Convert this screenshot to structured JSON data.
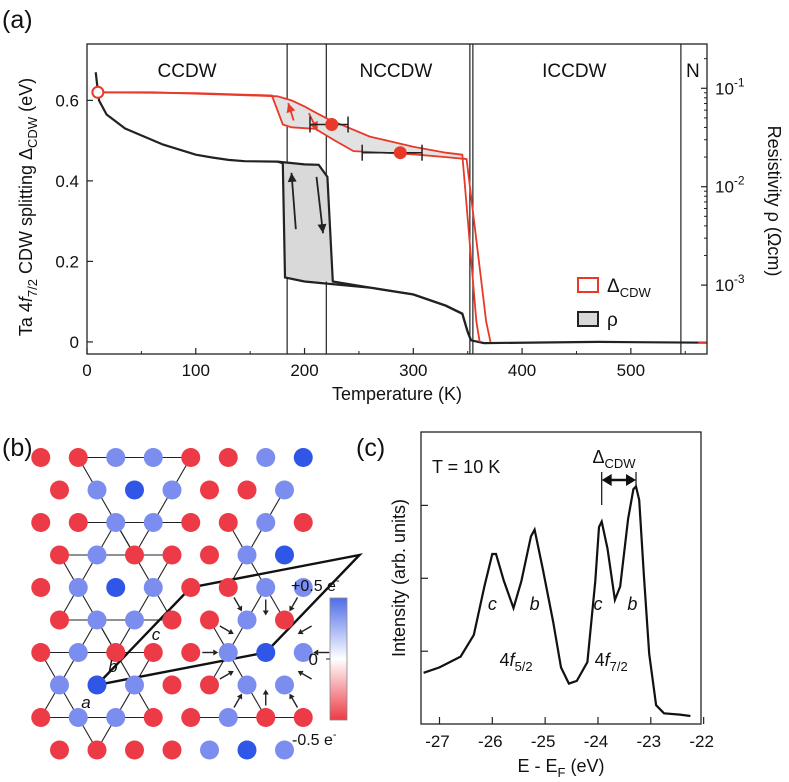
{
  "panel_labels": {
    "a": "(a)",
    "b": "(b)",
    "c": "(c)"
  },
  "chart_data": [
    {
      "panel": "a",
      "type": "line",
      "xlabel": "Temperature (K)",
      "ylabel": "Ta 4f7/2 CDW splitting ΔCDW (eV)",
      "y2label": "Resistivity ρ (Ωcm)",
      "xlim": [
        0,
        570
      ],
      "ylim": [
        -0.03,
        0.74
      ],
      "y2lim_log": [
        -3.7,
        -0.55
      ],
      "xticks": [
        0,
        100,
        200,
        300,
        400,
        500
      ],
      "yticks": [
        0,
        0.2,
        0.4,
        0.6
      ],
      "y2ticks_exp": [
        -3,
        -2,
        -1
      ],
      "phase_boundaries_K": [
        184,
        220,
        352,
        546
      ],
      "phases": [
        {
          "label": "CCDW",
          "x": 92
        },
        {
          "label": "NCCDW",
          "x": 284
        },
        {
          "label": "ICCDW",
          "x": 448
        },
        {
          "label": "N",
          "x": 557
        }
      ],
      "legend": [
        {
          "label": "ΔCDW",
          "color": "#e8392a"
        },
        {
          "label": "ρ",
          "color": "#222222"
        }
      ],
      "delta_cdw_cooling": [
        [
          10,
          0.62
        ],
        [
          60,
          0.62
        ],
        [
          120,
          0.615
        ],
        [
          175,
          0.61
        ],
        [
          188,
          0.6
        ],
        [
          200,
          0.585
        ],
        [
          210,
          0.57
        ],
        [
          222,
          0.553
        ],
        [
          260,
          0.51
        ],
        [
          300,
          0.485
        ],
        [
          330,
          0.47
        ],
        [
          345,
          0.465
        ],
        [
          358,
          0.05
        ],
        [
          361,
          0
        ]
      ],
      "delta_cdw_heating": [
        [
          10,
          0.62
        ],
        [
          100,
          0.618
        ],
        [
          170,
          0.612
        ],
        [
          180,
          0.54
        ],
        [
          188,
          0.533
        ],
        [
          210,
          0.529
        ],
        [
          228,
          0.5
        ],
        [
          245,
          0.474
        ],
        [
          300,
          0.466
        ],
        [
          330,
          0.459
        ],
        [
          349,
          0.454
        ],
        [
          367,
          0.05
        ],
        [
          371,
          0
        ]
      ],
      "delta_cdw_points": [
        {
          "T": 10,
          "value": 0.62,
          "marker": "open-circle"
        },
        {
          "T": 225,
          "value": 0.54,
          "xerr": [
            205,
            240
          ],
          "marker": "filled-circle"
        },
        {
          "T": 288,
          "value": 0.47,
          "xerr": [
            253,
            308
          ],
          "marker": "filled-circle"
        }
      ],
      "resistivity_cooling": [
        [
          8,
          0.67
        ],
        [
          11,
          0.6
        ],
        [
          18,
          0.565
        ],
        [
          35,
          0.53
        ],
        [
          70,
          0.49
        ],
        [
          100,
          0.465
        ],
        [
          115,
          0.458
        ],
        [
          130,
          0.452
        ],
        [
          145,
          0.449
        ],
        [
          175,
          0.448
        ],
        [
          180,
          0.444
        ],
        [
          182,
          0.16
        ],
        [
          200,
          0.15
        ],
        [
          260,
          0.135
        ],
        [
          300,
          0.118
        ],
        [
          330,
          0.09
        ],
        [
          345,
          0.07
        ],
        [
          350,
          0.025
        ],
        [
          353,
          0.004
        ],
        [
          365,
          -0.003
        ],
        [
          470,
          0.0
        ],
        [
          570,
          -0.002
        ]
      ],
      "resistivity_heating": [
        [
          175,
          0.448
        ],
        [
          200,
          0.441
        ],
        [
          213,
          0.44
        ],
        [
          221,
          0.41
        ],
        [
          226,
          0.15
        ],
        [
          260,
          0.135
        ],
        [
          300,
          0.118
        ],
        [
          330,
          0.09
        ],
        [
          345,
          0.07
        ],
        [
          350,
          0.025
        ],
        [
          353,
          0.004
        ]
      ]
    },
    {
      "panel": "c",
      "type": "line",
      "xlabel": "E - EF (eV)",
      "ylabel": "Intensity (arb. units)",
      "xlim": [
        -27.35,
        -22.05
      ],
      "xticks": [
        -27,
        -26,
        -25,
        -24,
        -23,
        -22
      ],
      "annotation_temperature": "T = 10 K",
      "annotation_splitting": "ΔCDW",
      "peak_labels": [
        {
          "text": "c",
          "x": -26.0
        },
        {
          "text": "b",
          "x": -25.2
        },
        {
          "text": "c",
          "x": -24.0
        },
        {
          "text": "b",
          "x": -23.35
        }
      ],
      "group_labels": [
        {
          "text": "4f5/2",
          "x": -25.55
        },
        {
          "text": "4f7/2",
          "x": -23.75
        }
      ],
      "spectrum": [
        [
          -27.3,
          0.16
        ],
        [
          -27.0,
          0.18
        ],
        [
          -26.6,
          0.22
        ],
        [
          -26.35,
          0.3
        ],
        [
          -26.15,
          0.48
        ],
        [
          -26.0,
          0.6
        ],
        [
          -25.93,
          0.6
        ],
        [
          -25.78,
          0.5
        ],
        [
          -25.6,
          0.4
        ],
        [
          -25.45,
          0.5
        ],
        [
          -25.27,
          0.665
        ],
        [
          -25.2,
          0.69
        ],
        [
          -25.05,
          0.55
        ],
        [
          -24.85,
          0.35
        ],
        [
          -24.7,
          0.18
        ],
        [
          -24.55,
          0.12
        ],
        [
          -24.4,
          0.13
        ],
        [
          -24.2,
          0.2
        ],
        [
          -24.05,
          0.5
        ],
        [
          -23.98,
          0.7
        ],
        [
          -23.93,
          0.72
        ],
        [
          -23.82,
          0.62
        ],
        [
          -23.68,
          0.43
        ],
        [
          -23.58,
          0.48
        ],
        [
          -23.43,
          0.73
        ],
        [
          -23.33,
          0.84
        ],
        [
          -23.28,
          0.85
        ],
        [
          -23.22,
          0.8
        ],
        [
          -23.13,
          0.52
        ],
        [
          -23.03,
          0.23
        ],
        [
          -22.9,
          0.04
        ],
        [
          -22.75,
          0.01
        ],
        [
          -22.45,
          0.005
        ],
        [
          -22.25,
          0.0
        ]
      ]
    }
  ],
  "lattice_panel": {
    "colorbar_labels": {
      "max": "+0.5 e-",
      "zero": "0",
      "min": "-0.5 e-"
    },
    "site_labels": [
      "a",
      "b",
      "c"
    ],
    "colors": {
      "positive": "#4f6de8",
      "neutral": "#ffffff",
      "negative": "#ec3b46"
    }
  }
}
